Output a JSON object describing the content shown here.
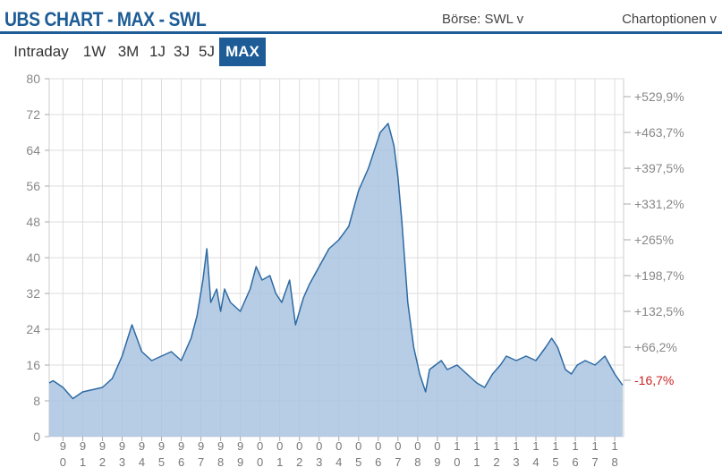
{
  "header": {
    "title": "UBS CHART - MAX - SWL",
    "exchange_label": "Börse: SWL v",
    "options_label": "Chartoptionen v"
  },
  "tabs": [
    {
      "label": "Intraday",
      "active": false
    },
    {
      "label": "1W",
      "active": false
    },
    {
      "label": "3M",
      "active": false
    },
    {
      "label": "1J",
      "active": false
    },
    {
      "label": "3J",
      "active": false
    },
    {
      "label": "5J",
      "active": false
    },
    {
      "label": "MAX",
      "active": true
    }
  ],
  "colors": {
    "accent": "#1d5c96",
    "line": "#2e6aa3",
    "area": "#a9c4e0",
    "negative": "#cc2222",
    "grid": "#dddddd"
  },
  "chart_data": {
    "type": "area",
    "ylim": [
      0,
      80
    ],
    "y_ticks": [
      "0",
      "8",
      "16",
      "24",
      "32",
      "40",
      "48",
      "56",
      "64",
      "72",
      "80"
    ],
    "right_axis_labels": [
      "+529,9%",
      "+463,7%",
      "+397,5%",
      "+331,2%",
      "+265%",
      "+198,7%",
      "+132,5%",
      "+66,2%",
      "-16,7%"
    ],
    "right_axis_values": [
      76,
      68,
      60,
      52,
      44,
      36,
      28,
      20,
      12.6
    ],
    "right_axis_highlight_index": 8,
    "x_tick_labels": [
      [
        "9",
        "0"
      ],
      [
        "9",
        "1"
      ],
      [
        "9",
        "2"
      ],
      [
        "9",
        "3"
      ],
      [
        "9",
        "4"
      ],
      [
        "9",
        "5"
      ],
      [
        "9",
        "6"
      ],
      [
        "9",
        "7"
      ],
      [
        "9",
        "8"
      ],
      [
        "9",
        "9"
      ],
      [
        "0",
        "0"
      ],
      [
        "0",
        "1"
      ],
      [
        "0",
        "2"
      ],
      [
        "0",
        "3"
      ],
      [
        "0",
        "4"
      ],
      [
        "0",
        "5"
      ],
      [
        "0",
        "6"
      ],
      [
        "0",
        "7"
      ],
      [
        "0",
        "8"
      ],
      [
        "0",
        "9"
      ],
      [
        "1",
        "0"
      ],
      [
        "1",
        "1"
      ],
      [
        "1",
        "2"
      ],
      [
        "1",
        "3"
      ],
      [
        "1",
        "4"
      ],
      [
        "1",
        "5"
      ],
      [
        "1",
        "6"
      ],
      [
        "1",
        "7"
      ],
      [
        "1",
        "8"
      ]
    ],
    "x": [
      1989.8,
      1990.0,
      1990.5,
      1991.0,
      1991.5,
      1992.0,
      1992.5,
      1993.0,
      1993.5,
      1994.0,
      1994.5,
      1995.0,
      1995.5,
      1996.0,
      1996.5,
      1997.0,
      1997.3,
      1997.6,
      1997.8,
      1998.0,
      1998.3,
      1998.5,
      1998.7,
      1999.0,
      1999.5,
      2000.0,
      2000.3,
      2000.6,
      2001.0,
      2001.3,
      2001.6,
      2002.0,
      2002.3,
      2002.7,
      2003.0,
      2003.5,
      2004.0,
      2004.5,
      2005.0,
      2005.5,
      2006.0,
      2006.3,
      2006.6,
      2007.0,
      2007.3,
      2007.5,
      2007.7,
      2008.0,
      2008.3,
      2008.6,
      2008.9,
      2009.1,
      2009.4,
      2009.7,
      2010.0,
      2010.5,
      2011.0,
      2011.5,
      2011.9,
      2012.3,
      2012.7,
      2013.0,
      2013.5,
      2014.0,
      2014.5,
      2015.0,
      2015.3,
      2015.6,
      2016.0,
      2016.3,
      2016.6,
      2017.0,
      2017.5,
      2018.0,
      2018.5,
      2018.9
    ],
    "y": [
      12,
      12.5,
      11,
      8.5,
      10,
      10.5,
      11,
      13,
      18,
      25,
      19,
      17,
      18,
      19,
      17,
      22,
      27,
      35,
      42,
      30,
      33,
      28,
      33,
      30,
      28,
      33,
      38,
      35,
      36,
      32,
      30,
      35,
      25,
      31,
      34,
      38,
      42,
      44,
      47,
      55,
      60,
      64,
      68,
      70,
      65,
      58,
      48,
      30,
      20,
      14,
      10,
      15,
      16,
      17,
      15,
      16,
      14,
      12,
      11,
      14,
      16,
      18,
      17,
      18,
      17,
      20,
      22,
      20,
      15,
      14,
      16,
      17,
      16,
      18,
      14,
      11.5
    ],
    "xlim": [
      1989.8,
      2018.95
    ]
  }
}
